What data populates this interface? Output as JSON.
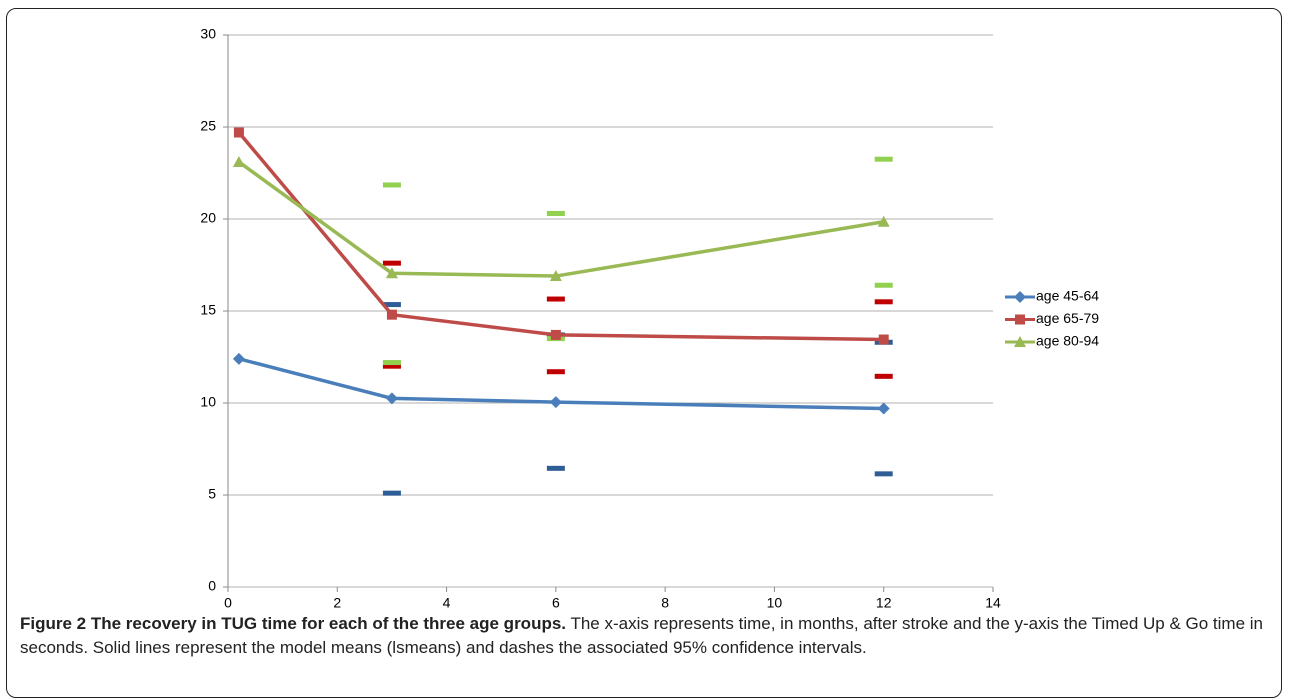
{
  "chart_data": {
    "type": "line",
    "x": [
      0.2,
      3,
      6,
      12
    ],
    "xlim": [
      0,
      14
    ],
    "xticks": [
      0,
      2,
      4,
      6,
      8,
      10,
      12,
      14
    ],
    "ylim": [
      0,
      30
    ],
    "yticks": [
      0,
      5,
      10,
      15,
      20,
      25,
      30
    ],
    "grid": true,
    "legend": "right",
    "series": [
      {
        "name": "age 45-64",
        "color": "#4a7ebb",
        "marker": "diamond",
        "values": [
          12.4,
          10.25,
          10.05,
          9.7
        ],
        "ci_color": "#2f5e96",
        "ci_upper": [
          null,
          15.35,
          13.7,
          13.3
        ],
        "ci_lower": [
          null,
          5.1,
          6.45,
          6.15
        ]
      },
      {
        "name": "age 65-79",
        "color": "#be4b48",
        "marker": "square",
        "values": [
          24.7,
          14.8,
          13.7,
          13.45
        ],
        "ci_color": "#c00000",
        "ci_upper": [
          null,
          17.6,
          15.65,
          15.5
        ],
        "ci_lower": [
          null,
          12.0,
          11.7,
          11.45
        ]
      },
      {
        "name": "age 80-94",
        "color": "#98b954",
        "marker": "triangle",
        "values": [
          23.1,
          17.05,
          16.9,
          19.85
        ],
        "ci_color": "#92d050",
        "ci_upper": [
          null,
          21.85,
          20.3,
          23.25
        ],
        "ci_lower": [
          null,
          12.2,
          13.5,
          16.4
        ]
      }
    ]
  },
  "caption": {
    "label": "Figure 2 The recovery in TUG time for each of the three age groups.",
    "text": "The x-axis represents time, in months, after stroke and the y-axis the Timed Up & Go time in seconds. Solid lines represent the model means (lsmeans) and dashes the associated 95% confidence intervals."
  }
}
